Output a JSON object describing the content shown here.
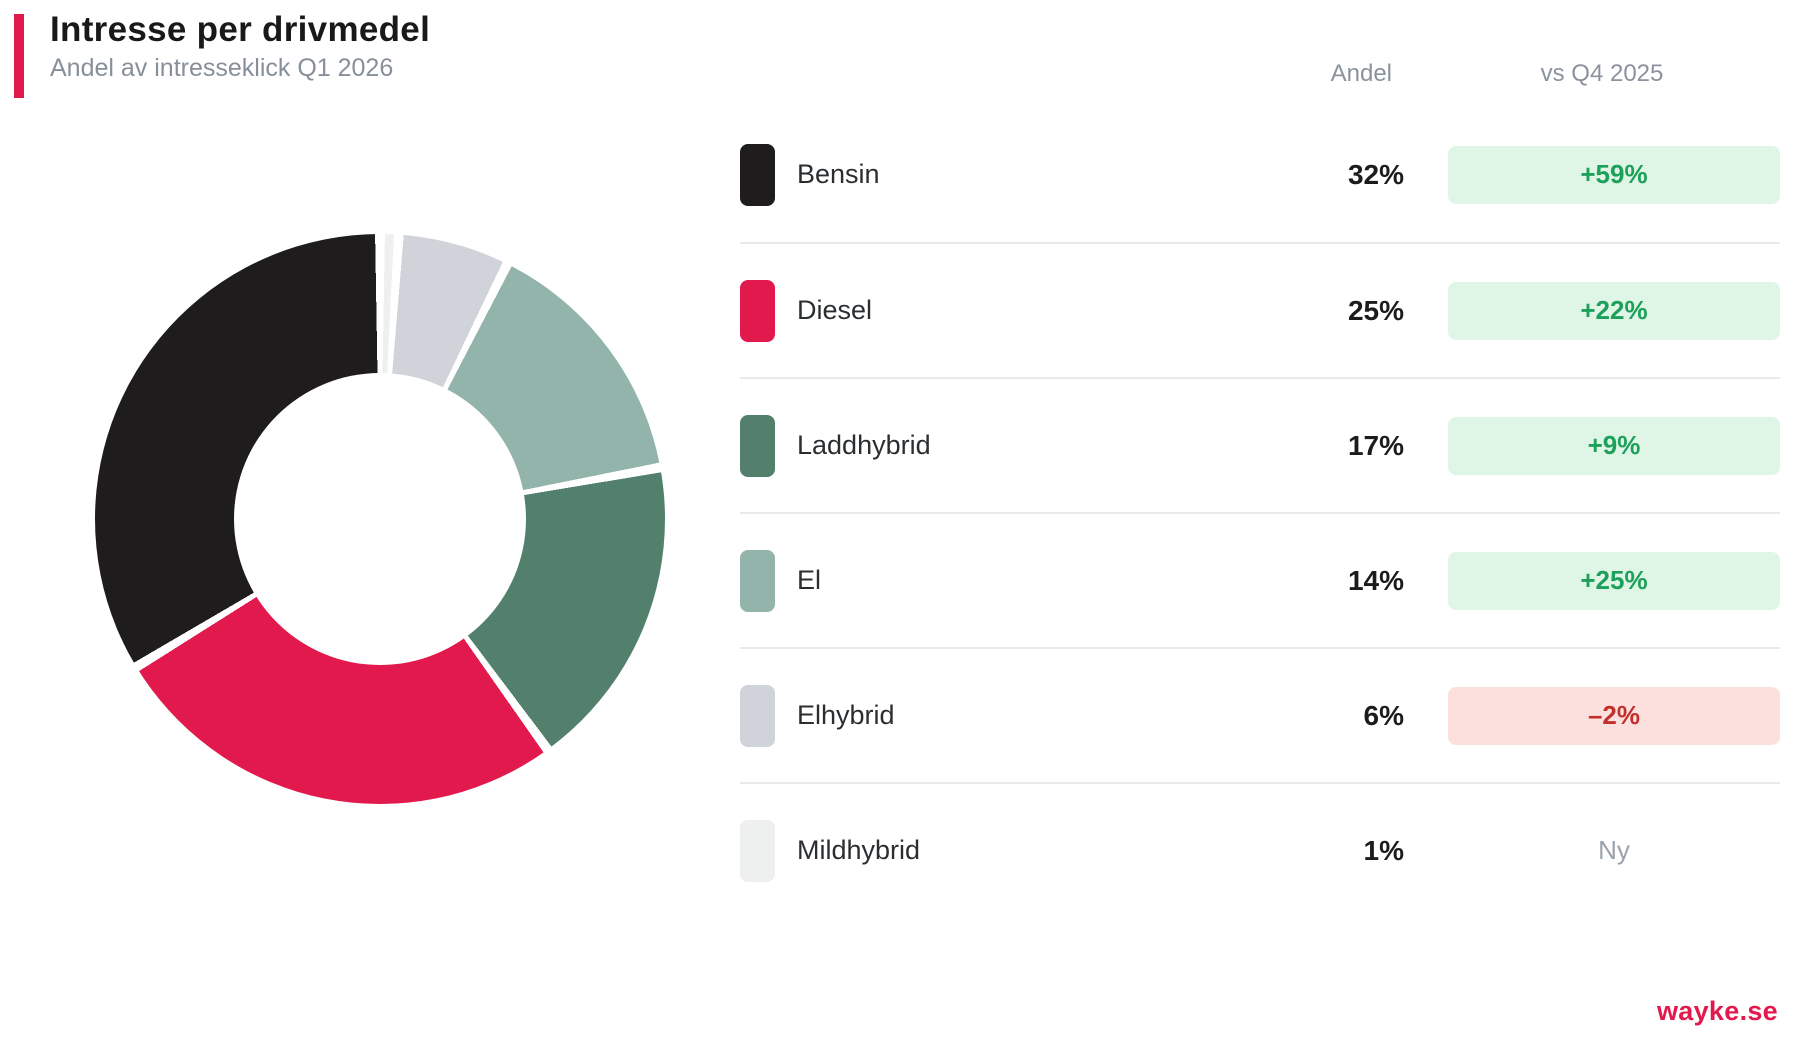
{
  "page": {
    "title": "Intresse per drivmedel",
    "subtitle": "Andel av intresseklick Q1 2026",
    "brand": "wayke.se"
  },
  "table": {
    "headers": {
      "share": "Andel",
      "change": "vs Q4 2025"
    }
  },
  "chart_data": {
    "type": "pie",
    "donut": true,
    "title": "Intresse per drivmedel",
    "subtitle": "Andel av intresseklick Q1 2026",
    "unit": "%",
    "start_angle_deg": 0,
    "direction": "clockwise",
    "order_from_top_clockwise": [
      "Mildhybrid",
      "Elhybrid",
      "El",
      "Laddhybrid",
      "Diesel",
      "Bensin"
    ],
    "categories": [
      "Bensin",
      "Diesel",
      "Laddhybrid",
      "El",
      "Elhybrid",
      "Mildhybrid"
    ],
    "values": [
      32,
      25,
      17,
      14,
      6,
      1
    ],
    "rows": [
      {
        "label": "Bensin",
        "value": 32,
        "share": "32%",
        "change": "+59%",
        "change_type": "up",
        "color": "#1f1c1d"
      },
      {
        "label": "Diesel",
        "value": 25,
        "share": "25%",
        "change": "+22%",
        "change_type": "up",
        "color": "#e2194c"
      },
      {
        "label": "Laddhybrid",
        "value": 17,
        "share": "17%",
        "change": "+9%",
        "change_type": "up",
        "color": "#53806c"
      },
      {
        "label": "El",
        "value": 14,
        "share": "14%",
        "change": "+25%",
        "change_type": "up",
        "color": "#93b4aa"
      },
      {
        "label": "Elhybrid",
        "value": 6,
        "share": "6%",
        "change": "–2%",
        "change_type": "down",
        "color": "#d0d3da"
      },
      {
        "label": "Mildhybrid",
        "value": 1,
        "share": "1%",
        "change": "Ny",
        "change_type": "new",
        "color": "#edf0ee"
      }
    ]
  },
  "colors": {
    "accent": "#e2194c",
    "up_badge_bg": "#dff6e6",
    "up_badge_text": "#1ca05a",
    "down_badge_bg": "#fbe0de",
    "down_badge_text": "#c2302d",
    "neutral_text": "#9aa2ab",
    "divider": "#e9e9ea",
    "gap": "#ffffff"
  }
}
